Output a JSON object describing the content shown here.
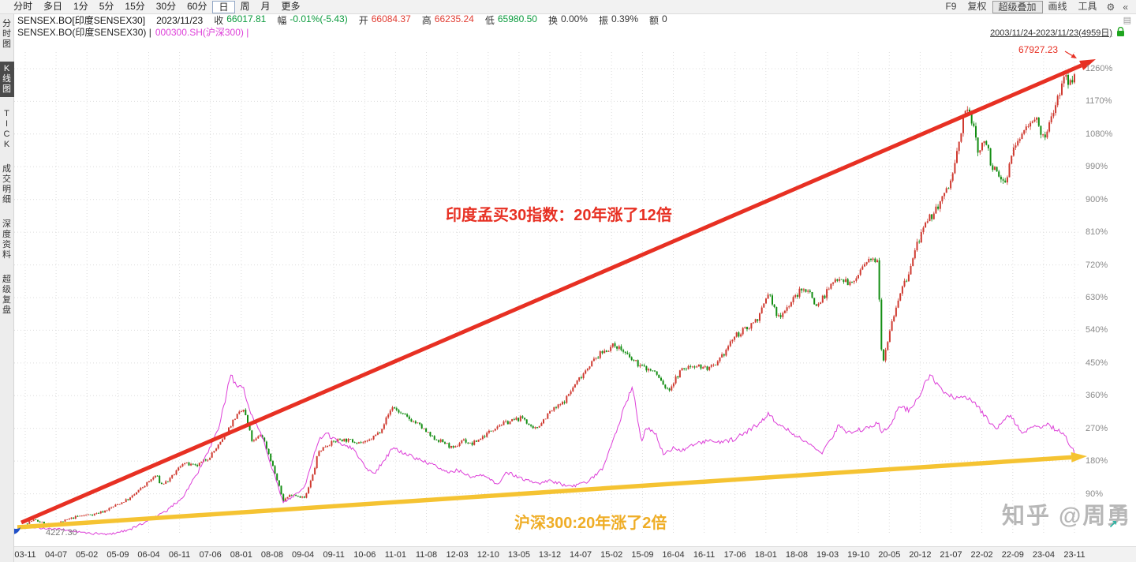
{
  "toolbar": {
    "left_items": [
      "分时",
      "多日",
      "1分",
      "5分",
      "15分",
      "30分",
      "60分",
      "日",
      "周",
      "月",
      "更多"
    ],
    "selected_index": 7,
    "right_items": [
      {
        "label": "F9",
        "boxed": false
      },
      {
        "label": "复权",
        "boxed": false
      },
      {
        "label": "超级叠加",
        "boxed": true
      },
      {
        "label": "画线",
        "boxed": false
      },
      {
        "label": "工具",
        "boxed": false
      }
    ]
  },
  "icons": {
    "gear": "⚙",
    "collapse": "«",
    "panel": "▤",
    "expand": "↗"
  },
  "info_bar": {
    "symbol": "SENSEX.BO[印度SENSEX30]",
    "date": "2023/11/23",
    "fields": [
      {
        "label": "收",
        "value": "66017.81",
        "color": "#0a9a3c"
      },
      {
        "label": "幅",
        "value": "-0.01%(-5.43)",
        "color": "#0a9a3c"
      },
      {
        "label": "开",
        "value": "66084.37",
        "color": "#e03c32"
      },
      {
        "label": "高",
        "value": "66235.24",
        "color": "#e03c32"
      },
      {
        "label": "低",
        "value": "65980.50",
        "color": "#0a9a3c"
      },
      {
        "label": "换",
        "value": "0.00%",
        "color": "#333333"
      },
      {
        "label": "振",
        "value": "0.39%",
        "color": "#333333"
      },
      {
        "label": "额",
        "value": "0",
        "color": "#333333"
      }
    ]
  },
  "overlay_bar": {
    "primary": "SENSEX.BO(印度SENSEX30) |",
    "secondary": "000300.SH(沪深300) |",
    "date_range": "2003/11/24-2023/11/23(4959日)"
  },
  "sidebar": {
    "items": [
      {
        "label": "分时图",
        "selected": false
      },
      {
        "label": "K线图",
        "selected": true
      },
      {
        "label": "TICK",
        "selected": false
      },
      {
        "label": "成交明细",
        "selected": false
      },
      {
        "label": "深度资料",
        "selected": false
      },
      {
        "label": "超级复盘",
        "selected": false
      }
    ]
  },
  "watermark": "知乎 @周勇",
  "chart_data": {
    "type": "candlestick",
    "title": "SENSEX.BO(印度SENSEX30) overlaid with 000300.SH(沪深300), percent change since 2003/11/24",
    "x_start": "2003-11",
    "x_end": "2023-11",
    "months": 240,
    "ylim_percent": [
      -60,
      1400
    ],
    "y_ticks_percent": [
      1260,
      1170,
      1080,
      990,
      900,
      810,
      720,
      630,
      540,
      450,
      360,
      270,
      180,
      90
    ],
    "x_labels": [
      "03-11",
      "04-07",
      "05-02",
      "05-09",
      "06-04",
      "06-11",
      "07-06",
      "08-01",
      "08-08",
      "09-04",
      "09-11",
      "10-06",
      "11-01",
      "11-08",
      "12-03",
      "12-10",
      "13-05",
      "13-12",
      "14-07",
      "15-02",
      "15-09",
      "16-04",
      "16-11",
      "17-06",
      "18-01",
      "18-08",
      "19-03",
      "19-10",
      "20-05",
      "20-12",
      "21-07",
      "22-02",
      "22-09",
      "23-04",
      "23-11"
    ],
    "series": [
      {
        "name": "SENSEX.BO(印度SENSEX30)",
        "style": "candlestick",
        "up_color": "#cf3a30",
        "down_color": "#128d12",
        "anchors_percent": [
          [
            0,
            8
          ],
          [
            2,
            18
          ],
          [
            4,
            10
          ],
          [
            6,
            2
          ],
          [
            8,
            12
          ],
          [
            12,
            28
          ],
          [
            16,
            35
          ],
          [
            18,
            42
          ],
          [
            21,
            60
          ],
          [
            24,
            78
          ],
          [
            27,
            110
          ],
          [
            30,
            142
          ],
          [
            31,
            115
          ],
          [
            33,
            128
          ],
          [
            36,
            175
          ],
          [
            39,
            165
          ],
          [
            42,
            190
          ],
          [
            45,
            235
          ],
          [
            47,
            280
          ],
          [
            48,
            300
          ],
          [
            50,
            322
          ],
          [
            52,
            230
          ],
          [
            54,
            255
          ],
          [
            56,
            190
          ],
          [
            59,
            72
          ],
          [
            61,
            90
          ],
          [
            64,
            78
          ],
          [
            66,
            150
          ],
          [
            67,
            205
          ],
          [
            69,
            225
          ],
          [
            72,
            240
          ],
          [
            75,
            235
          ],
          [
            78,
            230
          ],
          [
            81,
            260
          ],
          [
            84,
            330
          ],
          [
            86,
            310
          ],
          [
            88,
            295
          ],
          [
            90,
            280
          ],
          [
            93,
            245
          ],
          [
            96,
            230
          ],
          [
            98,
            212
          ],
          [
            100,
            240
          ],
          [
            102,
            225
          ],
          [
            105,
            250
          ],
          [
            108,
            278
          ],
          [
            111,
            290
          ],
          [
            114,
            300
          ],
          [
            116,
            265
          ],
          [
            117,
            272
          ],
          [
            120,
            315
          ],
          [
            123,
            340
          ],
          [
            126,
            395
          ],
          [
            129,
            445
          ],
          [
            132,
            480
          ],
          [
            135,
            500
          ],
          [
            137,
            480
          ],
          [
            138,
            465
          ],
          [
            141,
            440
          ],
          [
            144,
            425
          ],
          [
            146,
            390
          ],
          [
            147,
            372
          ],
          [
            150,
            430
          ],
          [
            153,
            445
          ],
          [
            156,
            435
          ],
          [
            158,
            440
          ],
          [
            162,
            520
          ],
          [
            165,
            545
          ],
          [
            168,
            580
          ],
          [
            170,
            645
          ],
          [
            172,
            575
          ],
          [
            174,
            600
          ],
          [
            177,
            645
          ],
          [
            179,
            655
          ],
          [
            181,
            605
          ],
          [
            183,
            640
          ],
          [
            186,
            690
          ],
          [
            189,
            665
          ],
          [
            192,
            720
          ],
          [
            194,
            735
          ],
          [
            195,
            740
          ],
          [
            196,
            445
          ],
          [
            198,
            555
          ],
          [
            200,
            640
          ],
          [
            202,
            690
          ],
          [
            204,
            780
          ],
          [
            207,
            850
          ],
          [
            210,
            905
          ],
          [
            212,
            960
          ],
          [
            214,
            1080
          ],
          [
            215,
            1155
          ],
          [
            217,
            1100
          ],
          [
            218,
            1030
          ],
          [
            220,
            1065
          ],
          [
            221,
            990
          ],
          [
            223,
            955
          ],
          [
            224,
            945
          ],
          [
            226,
            1035
          ],
          [
            228,
            1080
          ],
          [
            230,
            1120
          ],
          [
            231,
            1135
          ],
          [
            232,
            1080
          ],
          [
            233,
            1065
          ],
          [
            234,
            1095
          ],
          [
            236,
            1180
          ],
          [
            238,
            1240
          ],
          [
            239,
            1215
          ],
          [
            240,
            1255
          ]
        ]
      },
      {
        "name": "000300.SH(沪深300)",
        "style": "line",
        "color": "#dd3fd8",
        "anchors_percent": [
          [
            0,
            2
          ],
          [
            4,
            -5
          ],
          [
            8,
            -8
          ],
          [
            14,
            -18
          ],
          [
            19,
            -22
          ],
          [
            24,
            -8
          ],
          [
            28,
            15
          ],
          [
            32,
            40
          ],
          [
            36,
            80
          ],
          [
            40,
            160
          ],
          [
            44,
            260
          ],
          [
            46,
            360
          ],
          [
            47,
            425
          ],
          [
            48,
            390
          ],
          [
            50,
            375
          ],
          [
            52,
            300
          ],
          [
            54,
            255
          ],
          [
            56,
            180
          ],
          [
            59,
            65
          ],
          [
            62,
            90
          ],
          [
            64,
            110
          ],
          [
            67,
            235
          ],
          [
            69,
            255
          ],
          [
            72,
            230
          ],
          [
            75,
            215
          ],
          [
            78,
            160
          ],
          [
            80,
            148
          ],
          [
            84,
            215
          ],
          [
            88,
            195
          ],
          [
            90,
            185
          ],
          [
            94,
            165
          ],
          [
            96,
            150
          ],
          [
            99,
            155
          ],
          [
            102,
            135
          ],
          [
            105,
            140
          ],
          [
            108,
            115
          ],
          [
            110,
            150
          ],
          [
            112,
            140
          ],
          [
            114,
            130
          ],
          [
            117,
            118
          ],
          [
            120,
            125
          ],
          [
            123,
            115
          ],
          [
            126,
            112
          ],
          [
            129,
            125
          ],
          [
            132,
            160
          ],
          [
            134,
            225
          ],
          [
            136,
            290
          ],
          [
            137,
            330
          ],
          [
            139,
            385
          ],
          [
            140,
            300
          ],
          [
            141,
            235
          ],
          [
            142,
            270
          ],
          [
            144,
            260
          ],
          [
            146,
            200
          ],
          [
            148,
            215
          ],
          [
            150,
            210
          ],
          [
            153,
            225
          ],
          [
            156,
            235
          ],
          [
            159,
            230
          ],
          [
            162,
            240
          ],
          [
            165,
            260
          ],
          [
            168,
            285
          ],
          [
            170,
            310
          ],
          [
            172,
            285
          ],
          [
            174,
            270
          ],
          [
            177,
            245
          ],
          [
            180,
            220
          ],
          [
            182,
            200
          ],
          [
            185,
            255
          ],
          [
            186,
            280
          ],
          [
            188,
            255
          ],
          [
            190,
            265
          ],
          [
            192,
            268
          ],
          [
            194,
            280
          ],
          [
            195,
            290
          ],
          [
            196,
            258
          ],
          [
            198,
            285
          ],
          [
            200,
            330
          ],
          [
            202,
            320
          ],
          [
            204,
            350
          ],
          [
            206,
            395
          ],
          [
            207,
            420
          ],
          [
            209,
            380
          ],
          [
            210,
            370
          ],
          [
            213,
            355
          ],
          [
            216,
            350
          ],
          [
            218,
            330
          ],
          [
            220,
            295
          ],
          [
            222,
            268
          ],
          [
            225,
            305
          ],
          [
            227,
            280
          ],
          [
            228,
            252
          ],
          [
            230,
            270
          ],
          [
            232,
            275
          ],
          [
            234,
            280
          ],
          [
            236,
            265
          ],
          [
            237,
            258
          ],
          [
            238,
            245
          ],
          [
            239,
            225
          ],
          [
            240,
            205
          ]
        ]
      }
    ],
    "annotations": [
      {
        "text": "印度孟买30指数：20年涨了12倍",
        "color": "#e73023"
      },
      {
        "text": "沪深300:20年涨了2倍",
        "color": "#efad26"
      },
      {
        "text": "67927.23",
        "color": "#e73023"
      },
      {
        "text": "4227.30",
        "color": "#777777"
      }
    ],
    "arrow_colors": {
      "sensex_trend": "#e73023",
      "csi_trend": "#f5c332"
    },
    "grid_color": "#dcdcdc"
  }
}
